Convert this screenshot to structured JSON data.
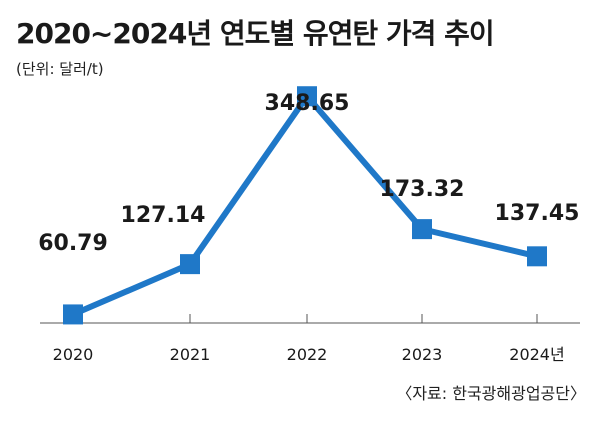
{
  "title": "2020~2024년 연도별 유연탄 가격 추이",
  "unit": "(단위: 달러/t)",
  "source": "〈자료: 한국광해광업공단〉",
  "colors": {
    "line": "#1f78c8",
    "marker": "#1f78c8",
    "axis": "#555555",
    "text": "#1a1a1a"
  },
  "chart_data": {
    "type": "line",
    "categories": [
      "2020",
      "2021",
      "2022",
      "2023",
      "2024년"
    ],
    "series": [
      {
        "values": [
          60.79,
          127.14,
          348.65,
          173.32,
          137.45
        ]
      }
    ],
    "data_labels": [
      "60.79",
      "127.14",
      "348.65",
      "173.32",
      "137.45"
    ],
    "ylim": [
      0,
      400
    ],
    "grid": false,
    "legend": "none"
  }
}
